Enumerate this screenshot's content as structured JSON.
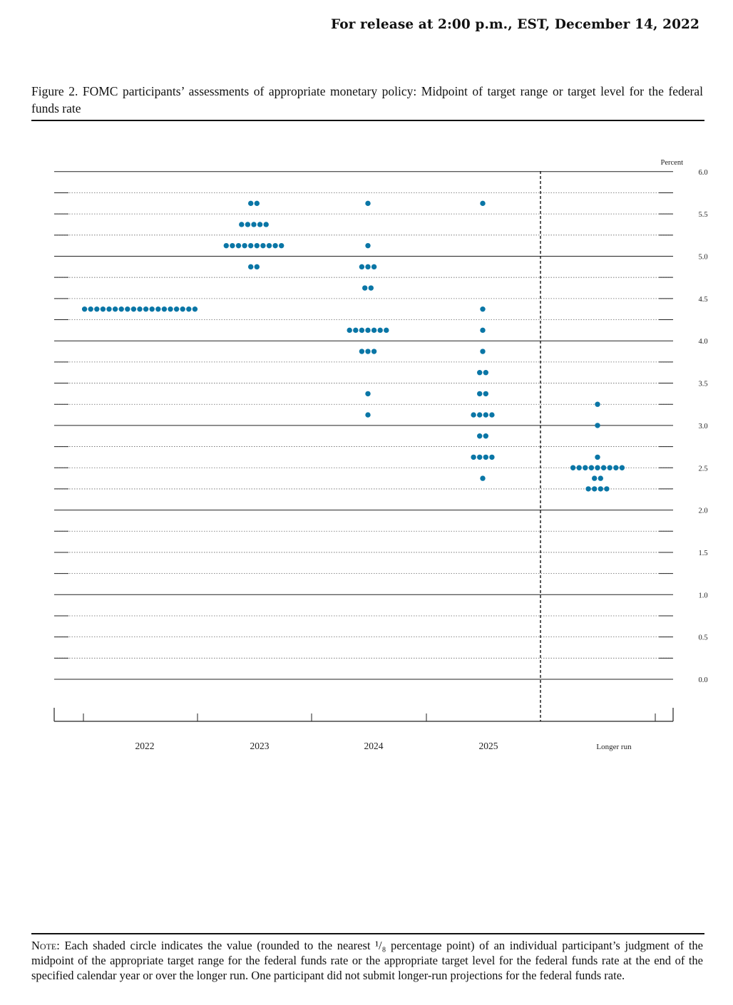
{
  "header": {
    "release": "For release at 2:00 p.m., EST, December 14, 2022"
  },
  "figure": {
    "title": "Figure 2.  FOMC participants’ assessments of appropriate monetary policy: Midpoint of target range or target level for the federal funds rate"
  },
  "note": {
    "label": "Note:",
    "text": " Each shaded circle indicates the value (rounded to the nearest ¹/₈ percentage point) of an individual participant’s judgment of the midpoint of the appropriate target range for the federal funds rate or the appropriate target level for the federal funds rate at the end of the specified calendar year or over the longer run. One participant did not submit longer-run projections for the federal funds rate."
  },
  "chart_data": {
    "type": "scatter",
    "title": "",
    "ylabel": "Percent",
    "ylim": [
      0,
      6
    ],
    "yticks": [
      "0.0",
      "0.5",
      "1.0",
      "1.5",
      "2.0",
      "2.5",
      "3.0",
      "3.5",
      "4.0",
      "4.5",
      "5.0",
      "5.5",
      "6.0"
    ],
    "categories": [
      "2022",
      "2023",
      "2024",
      "2025",
      "Longer run"
    ],
    "dot_color": "#0a76a6",
    "series": [
      {
        "category": "2022",
        "points": [
          {
            "y": 4.375,
            "count": 19
          }
        ]
      },
      {
        "category": "2023",
        "points": [
          {
            "y": 5.625,
            "count": 2
          },
          {
            "y": 5.375,
            "count": 5
          },
          {
            "y": 5.125,
            "count": 10
          },
          {
            "y": 4.875,
            "count": 2
          }
        ]
      },
      {
        "category": "2024",
        "points": [
          {
            "y": 5.625,
            "count": 1
          },
          {
            "y": 5.125,
            "count": 1
          },
          {
            "y": 4.875,
            "count": 3
          },
          {
            "y": 4.625,
            "count": 2
          },
          {
            "y": 4.125,
            "count": 7
          },
          {
            "y": 3.875,
            "count": 3
          },
          {
            "y": 3.375,
            "count": 1
          },
          {
            "y": 3.125,
            "count": 1
          }
        ]
      },
      {
        "category": "2025",
        "points": [
          {
            "y": 5.625,
            "count": 1
          },
          {
            "y": 4.375,
            "count": 1
          },
          {
            "y": 4.125,
            "count": 1
          },
          {
            "y": 3.875,
            "count": 1
          },
          {
            "y": 3.625,
            "count": 2
          },
          {
            "y": 3.375,
            "count": 2
          },
          {
            "y": 3.125,
            "count": 4
          },
          {
            "y": 2.875,
            "count": 2
          },
          {
            "y": 2.625,
            "count": 4
          },
          {
            "y": 2.375,
            "count": 1
          }
        ]
      },
      {
        "category": "Longer run",
        "points": [
          {
            "y": 3.25,
            "count": 1
          },
          {
            "y": 3.0,
            "count": 1
          },
          {
            "y": 2.625,
            "count": 1
          },
          {
            "y": 2.5,
            "count": 9
          },
          {
            "y": 2.375,
            "count": 2
          },
          {
            "y": 2.25,
            "count": 4
          }
        ]
      }
    ]
  }
}
